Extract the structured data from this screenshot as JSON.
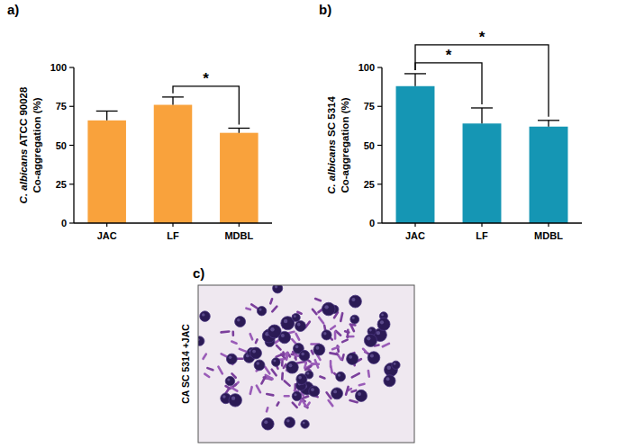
{
  "chart_data": [
    {
      "type": "bar",
      "title": "a)",
      "ylabel": [
        "C. albicans ATCC 90028",
        "Co-aggregation (%)"
      ],
      "categories": [
        "JAC",
        "LF",
        "MDBL"
      ],
      "values": [
        66,
        76,
        58
      ],
      "errors": [
        6,
        5,
        3
      ],
      "color": "#f9a23c",
      "ylim": [
        0,
        100
      ],
      "yticks": [
        0,
        25,
        50,
        75,
        100
      ],
      "grid": false,
      "annotations": [
        {
          "from": "LF",
          "to": "MDBL",
          "label": "*"
        }
      ]
    },
    {
      "type": "bar",
      "title": "b)",
      "ylabel": [
        "C. albicans SC 5314",
        "Co-aggregation (%)"
      ],
      "categories": [
        "JAC",
        "LF",
        "MDBL"
      ],
      "values": [
        88,
        64,
        62
      ],
      "errors": [
        8,
        10,
        4
      ],
      "color": "#1596b4",
      "ylim": [
        0,
        100
      ],
      "yticks": [
        0,
        25,
        50,
        75,
        100
      ],
      "grid": false,
      "annotations": [
        {
          "from": "JAC",
          "to": "LF",
          "label": "*"
        },
        {
          "from": "JAC",
          "to": "MDBL",
          "label": "*"
        }
      ]
    },
    {
      "type": "image",
      "title": "c)",
      "ylabel": "CA SC 5314 +JAC"
    }
  ]
}
